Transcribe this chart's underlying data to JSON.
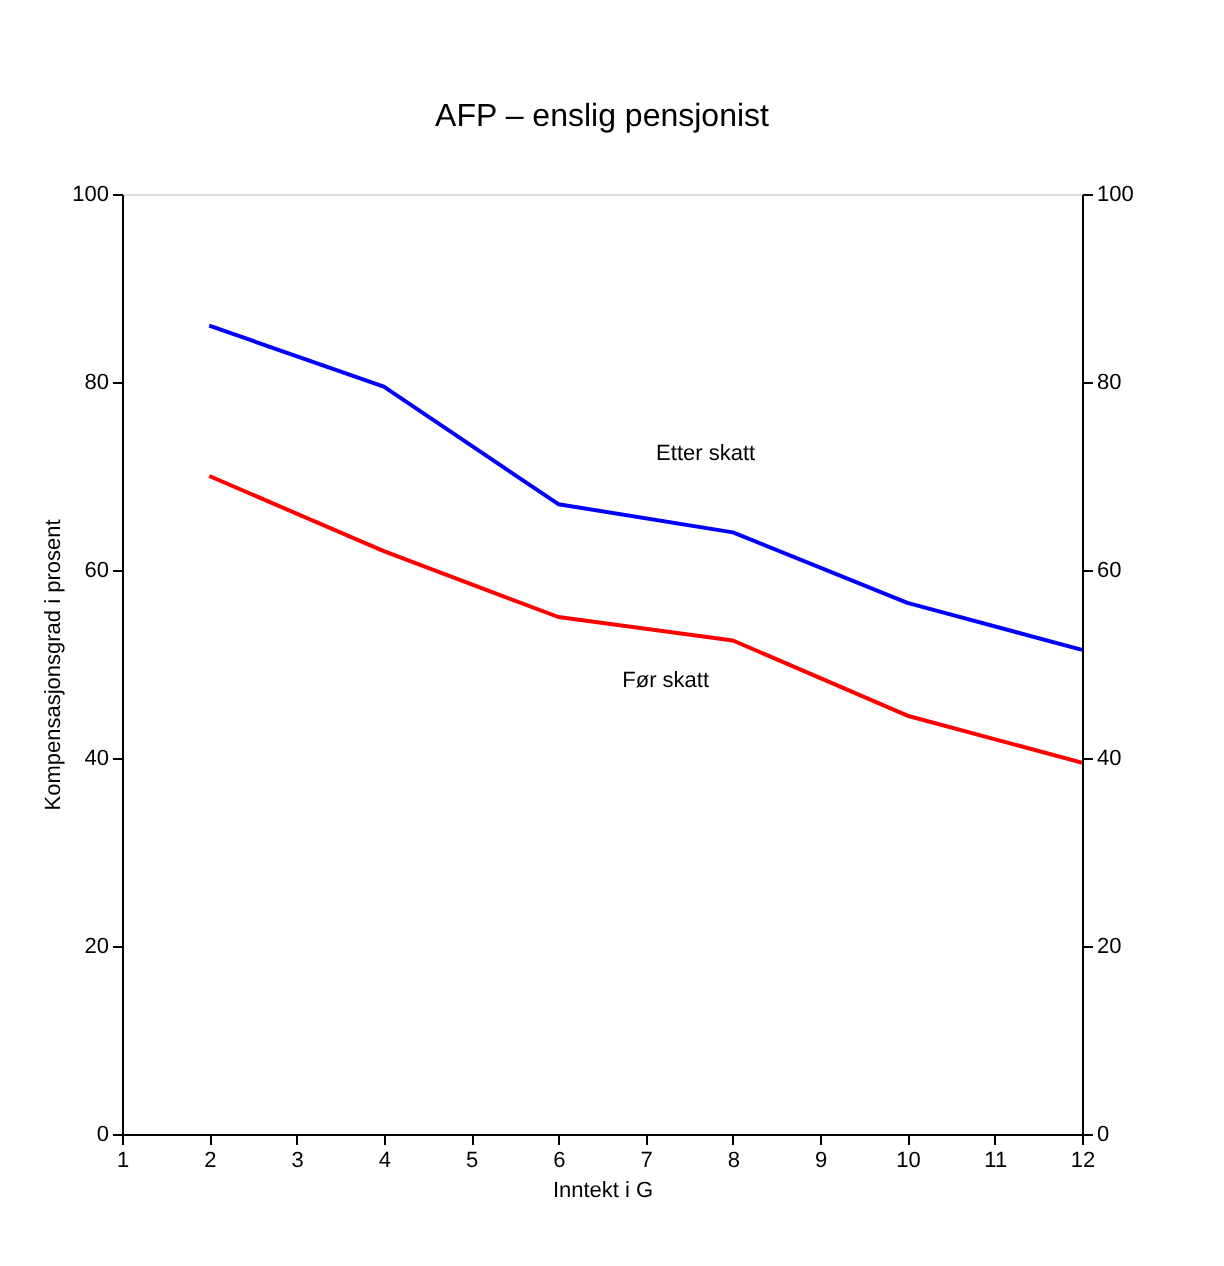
{
  "chart_data": {
    "type": "line",
    "title": "AFP – enslig pensjonist",
    "xlabel": "Inntekt i G",
    "ylabel": "Kompensasjonsgrad i prosent",
    "x": [
      2,
      4,
      6,
      8,
      10,
      12
    ],
    "series": [
      {
        "name": "Etter skatt",
        "color": "#0000ff",
        "values": [
          86,
          79.5,
          67,
          64,
          56.5,
          51.5
        ]
      },
      {
        "name": "Før skatt",
        "color": "#ff0000",
        "values": [
          70,
          62,
          55,
          52.5,
          44.5,
          39.5
        ]
      }
    ],
    "xlim": [
      1,
      12
    ],
    "xticks": [
      1,
      2,
      3,
      4,
      5,
      6,
      7,
      8,
      9,
      10,
      11,
      12
    ],
    "ylim": [
      0,
      100
    ],
    "yticks": [
      0,
      20,
      40,
      60,
      80,
      100
    ],
    "y2lim": [
      0,
      100
    ],
    "y2ticks": [
      0,
      20,
      40,
      60,
      80,
      100
    ],
    "grid": false,
    "legend": false,
    "marker": "none",
    "line_style": "solid"
  }
}
